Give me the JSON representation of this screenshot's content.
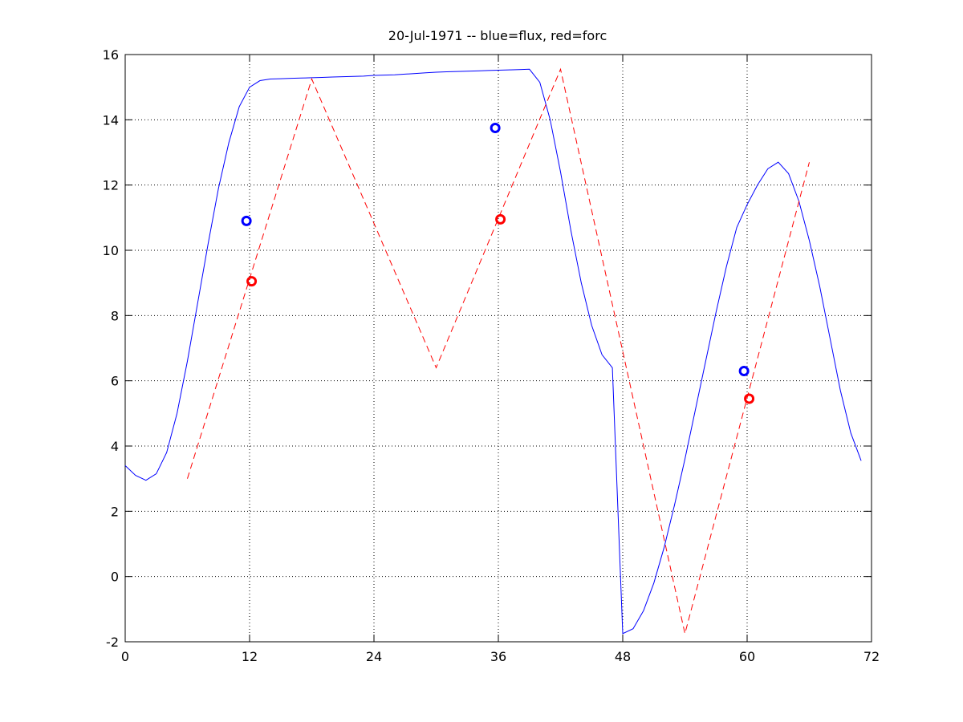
{
  "chart_data": {
    "type": "line",
    "title": "20-Jul-1971 -- blue=flux, red=forc",
    "xlim": [
      0,
      72
    ],
    "xticks": [
      0,
      12,
      24,
      36,
      48,
      60,
      72
    ],
    "ylim": [
      -2,
      16
    ],
    "yticks": [
      -2,
      0,
      2,
      4,
      6,
      8,
      10,
      12,
      14,
      16
    ],
    "grid": true,
    "series": [
      {
        "type": "line",
        "color": "#0000ff",
        "dash": "solid",
        "x": [
          0,
          1,
          2,
          3,
          4,
          5,
          6,
          7,
          8,
          9,
          10,
          11,
          12,
          13,
          14,
          15,
          16,
          17,
          18,
          19,
          20,
          21,
          22,
          23,
          24,
          25,
          26,
          27,
          28,
          29,
          30,
          31,
          32,
          33,
          34,
          35,
          36,
          37,
          38,
          39,
          40,
          41,
          42,
          43,
          44,
          45,
          46,
          47,
          48,
          49,
          50,
          51,
          52,
          53,
          54,
          55,
          56,
          57,
          58,
          59,
          60,
          61,
          62,
          63,
          64,
          65,
          66,
          67,
          68,
          69,
          70,
          71
        ],
        "values": [
          3.4,
          3.1,
          2.95,
          3.15,
          3.8,
          5.0,
          6.6,
          8.4,
          10.2,
          11.9,
          13.3,
          14.4,
          15.0,
          15.2,
          15.25,
          15.26,
          15.27,
          15.28,
          15.29,
          15.3,
          15.31,
          15.32,
          15.33,
          15.34,
          15.36,
          15.37,
          15.38,
          15.4,
          15.42,
          15.44,
          15.46,
          15.47,
          15.48,
          15.49,
          15.5,
          15.51,
          15.52,
          15.53,
          15.54,
          15.55,
          15.15,
          14.0,
          12.4,
          10.6,
          9.0,
          7.7,
          6.8,
          6.4,
          -1.75,
          -1.6,
          -1.05,
          -0.2,
          0.9,
          2.2,
          3.6,
          5.1,
          6.6,
          8.1,
          9.5,
          10.7,
          11.4,
          12.0,
          12.5,
          12.7,
          12.35,
          11.5,
          10.3,
          8.9,
          7.3,
          5.7,
          4.4,
          3.55
        ]
      },
      {
        "type": "line",
        "color": "#ff0000",
        "dash": "dashed",
        "x": [
          6,
          18,
          30,
          42,
          54,
          66
        ],
        "values": [
          3.0,
          15.25,
          6.4,
          15.55,
          -1.75,
          12.7
        ]
      },
      {
        "type": "scatter",
        "color": "#0000ff",
        "x": [
          11.7,
          35.7,
          59.7
        ],
        "values": [
          10.9,
          13.75,
          6.3
        ]
      },
      {
        "type": "scatter",
        "color": "#ff0000",
        "x": [
          12.2,
          36.2,
          60.2
        ],
        "values": [
          9.05,
          10.95,
          5.45
        ]
      }
    ]
  }
}
